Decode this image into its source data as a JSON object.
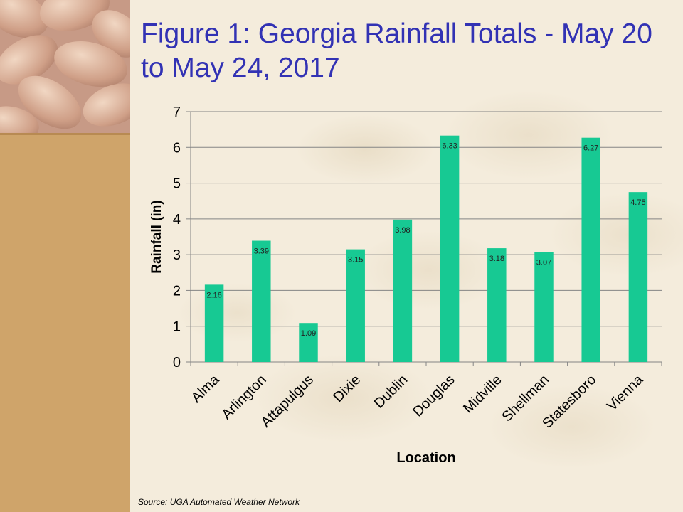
{
  "title": "Figure 1: Georgia Rainfall Totals - May 20 to May 24, 2017",
  "source": "Source:  UGA Automated Weather Network",
  "colors": {
    "bar": "#17c993",
    "title": "#3232b4",
    "panel": "#cfa46a",
    "background": "#f4ecdc"
  },
  "chart_data": {
    "type": "bar",
    "title": "",
    "xlabel": "Location",
    "ylabel": "Rainfall (in)",
    "categories": [
      "Alma",
      "Arlington",
      "Attapulgus",
      "Dixie",
      "Dublin",
      "Douglas",
      "Midville",
      "Shellman",
      "Statesboro",
      "Vienna"
    ],
    "values": [
      2.16,
      3.39,
      1.09,
      3.15,
      3.98,
      6.33,
      3.18,
      3.07,
      6.27,
      4.75
    ],
    "data_labels": [
      "2.16",
      "3.39",
      "1.09",
      "3.15",
      "3.98",
      "6.33",
      "3.18",
      "3.07",
      "6.27",
      "4.75"
    ],
    "ylim": [
      0,
      7
    ],
    "yticks": [
      0,
      1,
      2,
      3,
      4,
      5,
      6,
      7
    ],
    "grid": true,
    "legend": "none"
  }
}
